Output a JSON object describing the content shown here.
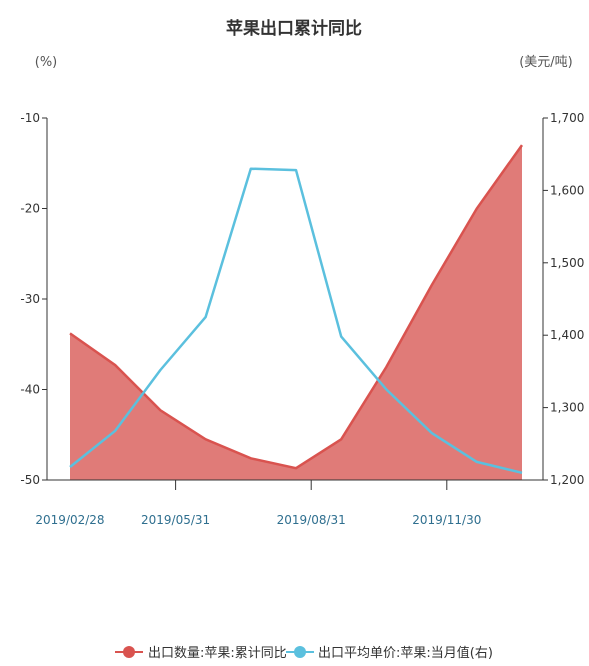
{
  "colors": {
    "series_left": "#d9534f",
    "series_left_fill": "#e07b78",
    "series_right": "#5bc0de",
    "axis": "#333333",
    "xtick_text": "#2f6f8f"
  },
  "chart_data": {
    "type": "area",
    "title": "苹果出口累计同比",
    "y_left_unit": "(%)",
    "y_right_unit": "(美元/吨)",
    "y_left_ticks": [
      "-10",
      "-20",
      "-30",
      "-40",
      "-50"
    ],
    "y_right_ticks": [
      "1,700",
      "1,600",
      "1,500",
      "1,400",
      "1,300",
      "1,200"
    ],
    "y_left_range": [
      -50,
      -10
    ],
    "y_right_range": [
      1200,
      1700
    ],
    "x_tick_labels": [
      "2019/02/28",
      "2019/05/31",
      "2019/08/31",
      "2019/11/30"
    ],
    "x": [
      "2019/02",
      "2019/03",
      "2019/04",
      "2019/05",
      "2019/06",
      "2019/07",
      "2019/08",
      "2019/09",
      "2019/10",
      "2019/11",
      "2019/12"
    ],
    "series": [
      {
        "name": "出口数量:苹果:累计同比",
        "axis": "left",
        "kind": "area",
        "values": [
          -33.8,
          -37.3,
          -42.3,
          -45.5,
          -47.6,
          -48.7,
          -45.5,
          -37.5,
          -28.5,
          -20.0,
          -13.0
        ]
      },
      {
        "name": "出口平均单价:苹果:当月值(右)",
        "axis": "right",
        "kind": "line",
        "values": [
          1218,
          1268,
          1352,
          1425,
          1630,
          1628,
          1398,
          1325,
          1265,
          1225,
          1210
        ]
      }
    ],
    "legend_position": "bottom",
    "grid": false
  }
}
